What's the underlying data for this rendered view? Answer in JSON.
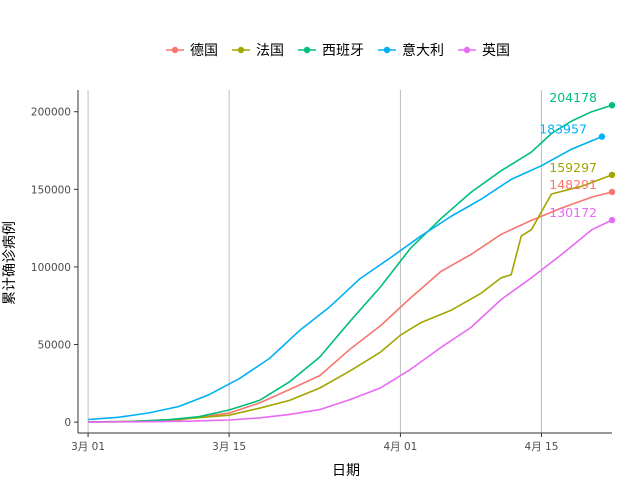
{
  "chart_data": {
    "type": "line",
    "xlabel": "日期",
    "ylabel": "累计确诊病例",
    "x_axis": {
      "type": "date",
      "range": [
        "2020-02-29",
        "2020-04-22"
      ],
      "ticks": [
        "2020-03-01",
        "2020-03-15",
        "2020-04-01",
        "2020-04-15"
      ],
      "tick_labels": [
        "3月 01",
        "3月 15",
        "4月 01",
        "4月 15"
      ]
    },
    "y_axis": {
      "range": [
        -7000,
        214000
      ],
      "ticks": [
        0,
        50000,
        100000,
        150000,
        200000
      ],
      "tick_labels": [
        "0",
        "50000",
        "100000",
        "150000",
        "200000"
      ]
    },
    "grid": {
      "vertical_major": true,
      "horizontal": false
    },
    "legend": {
      "position": "top"
    },
    "series": [
      {
        "name": "德国",
        "color": "#F8766D",
        "end_label": "148291",
        "points": [
          [
            "2020-03-01",
            130
          ],
          [
            "2020-03-05",
            500
          ],
          [
            "2020-03-10",
            1500
          ],
          [
            "2020-03-15",
            5800
          ],
          [
            "2020-03-18",
            12300
          ],
          [
            "2020-03-21",
            21000
          ],
          [
            "2020-03-24",
            30000
          ],
          [
            "2020-03-27",
            47000
          ],
          [
            "2020-03-30",
            62000
          ],
          [
            "2020-04-02",
            80000
          ],
          [
            "2020-04-05",
            97000
          ],
          [
            "2020-04-08",
            108000
          ],
          [
            "2020-04-11",
            121000
          ],
          [
            "2020-04-14",
            130000
          ],
          [
            "2020-04-17",
            138000
          ],
          [
            "2020-04-20",
            145000
          ],
          [
            "2020-04-22",
            148291
          ]
        ]
      },
      {
        "name": "法国",
        "color": "#A3A500",
        "end_label": "159297",
        "points": [
          [
            "2020-03-01",
            130
          ],
          [
            "2020-03-05",
            400
          ],
          [
            "2020-03-10",
            1800
          ],
          [
            "2020-03-15",
            4500
          ],
          [
            "2020-03-18",
            9000
          ],
          [
            "2020-03-21",
            14000
          ],
          [
            "2020-03-24",
            22000
          ],
          [
            "2020-03-27",
            33000
          ],
          [
            "2020-03-30",
            45000
          ],
          [
            "2020-04-01",
            56000
          ],
          [
            "2020-04-03",
            64000
          ],
          [
            "2020-04-06",
            72000
          ],
          [
            "2020-04-09",
            83000
          ],
          [
            "2020-04-11",
            93000
          ],
          [
            "2020-04-12",
            95000
          ],
          [
            "2020-04-13",
            120000
          ],
          [
            "2020-04-14",
            124000
          ],
          [
            "2020-04-16",
            147000
          ],
          [
            "2020-04-19",
            152000
          ],
          [
            "2020-04-22",
            159297
          ]
        ]
      },
      {
        "name": "西班牙",
        "color": "#00BF7D",
        "end_label": "204178",
        "points": [
          [
            "2020-03-01",
            80
          ],
          [
            "2020-03-05",
            300
          ],
          [
            "2020-03-09",
            1600
          ],
          [
            "2020-03-12",
            3500
          ],
          [
            "2020-03-15",
            7800
          ],
          [
            "2020-03-18",
            14000
          ],
          [
            "2020-03-21",
            26000
          ],
          [
            "2020-03-24",
            42000
          ],
          [
            "2020-03-27",
            65000
          ],
          [
            "2020-03-30",
            87000
          ],
          [
            "2020-04-02",
            112000
          ],
          [
            "2020-04-05",
            131000
          ],
          [
            "2020-04-08",
            148000
          ],
          [
            "2020-04-11",
            162000
          ],
          [
            "2020-04-14",
            174000
          ],
          [
            "2020-04-16",
            186000
          ],
          [
            "2020-04-18",
            194000
          ],
          [
            "2020-04-20",
            200000
          ],
          [
            "2020-04-22",
            204178
          ]
        ]
      },
      {
        "name": "意大利",
        "color": "#00B0F6",
        "end_label": "183957",
        "points": [
          [
            "2020-03-01",
            1700
          ],
          [
            "2020-03-04",
            3100
          ],
          [
            "2020-03-07",
            5900
          ],
          [
            "2020-03-10",
            10100
          ],
          [
            "2020-03-13",
            17700
          ],
          [
            "2020-03-16",
            27980
          ],
          [
            "2020-03-19",
            41000
          ],
          [
            "2020-03-22",
            59100
          ],
          [
            "2020-03-25",
            74400
          ],
          [
            "2020-03-28",
            92500
          ],
          [
            "2020-03-31",
            105800
          ],
          [
            "2020-04-03",
            119800
          ],
          [
            "2020-04-06",
            132500
          ],
          [
            "2020-04-09",
            143600
          ],
          [
            "2020-04-12",
            156400
          ],
          [
            "2020-04-15",
            165200
          ],
          [
            "2020-04-18",
            175900
          ],
          [
            "2020-04-21",
            183957
          ]
        ]
      },
      {
        "name": "英国",
        "color": "#E76BF3",
        "end_label": "130172",
        "points": [
          [
            "2020-03-01",
            30
          ],
          [
            "2020-03-06",
            200
          ],
          [
            "2020-03-11",
            600
          ],
          [
            "2020-03-15",
            1400
          ],
          [
            "2020-03-18",
            2700
          ],
          [
            "2020-03-21",
            5000
          ],
          [
            "2020-03-24",
            8100
          ],
          [
            "2020-03-27",
            14500
          ],
          [
            "2020-03-30",
            22000
          ],
          [
            "2020-04-02",
            34000
          ],
          [
            "2020-04-05",
            48000
          ],
          [
            "2020-04-08",
            61000
          ],
          [
            "2020-04-11",
            79000
          ],
          [
            "2020-04-14",
            93000
          ],
          [
            "2020-04-17",
            108000
          ],
          [
            "2020-04-20",
            124000
          ],
          [
            "2020-04-22",
            130172
          ]
        ]
      }
    ]
  }
}
